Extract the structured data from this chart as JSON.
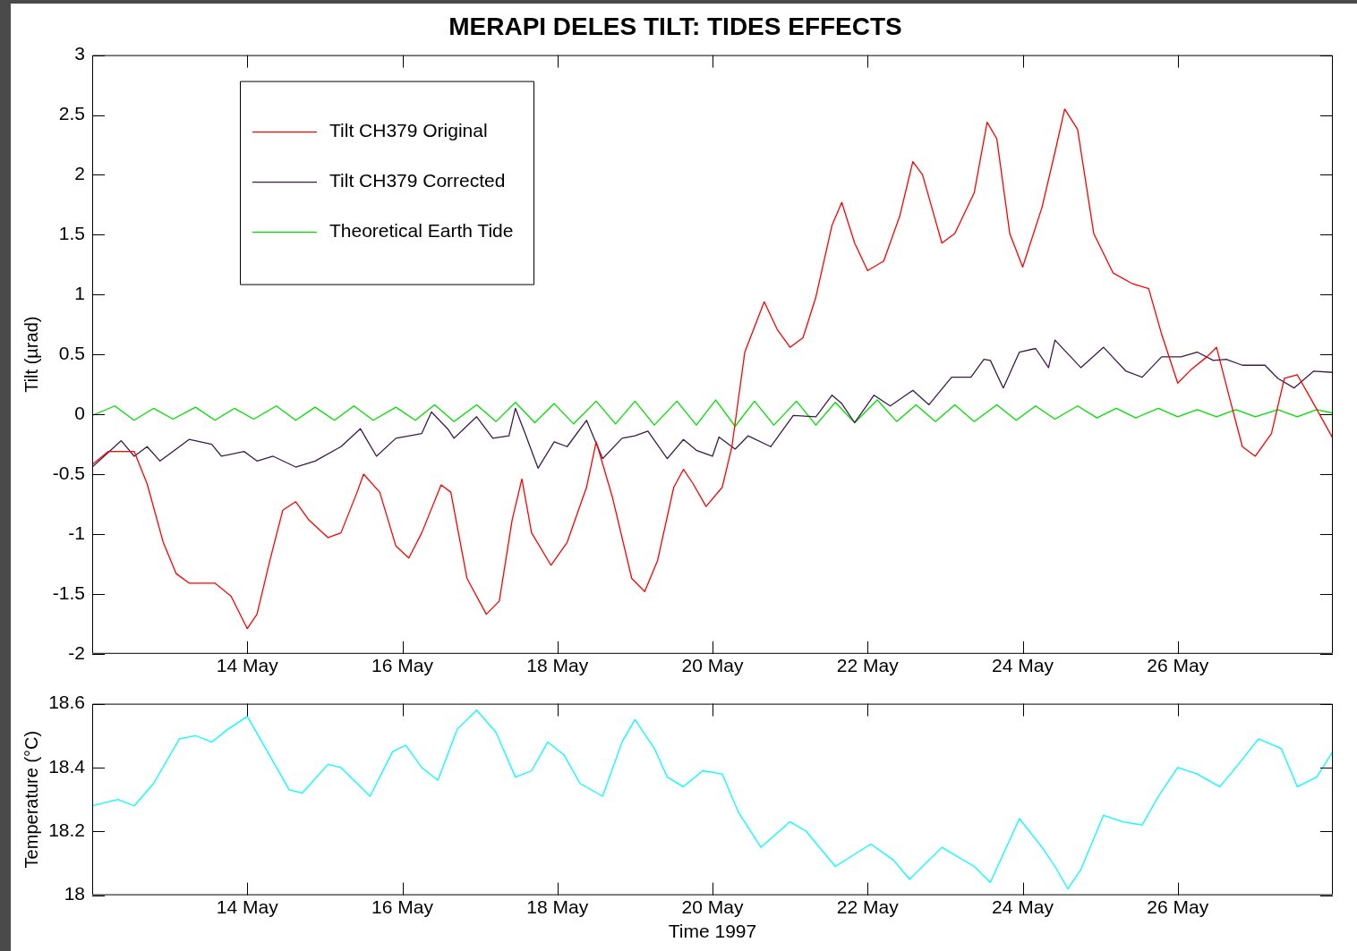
{
  "chart_data": [
    {
      "type": "line",
      "title": "MERAPI DELES TILT: TIDES EFFECTS",
      "ylabel": "Tilt (µrad)",
      "legend": "top left",
      "grid": false,
      "marker": "none",
      "line_style": "solid",
      "xlim": [
        "1997-05-12",
        "1997-05-28"
      ],
      "xticks": [
        {
          "value": "1997-05-14",
          "label": "14 May"
        },
        {
          "value": "1997-05-16",
          "label": "16 May"
        },
        {
          "value": "1997-05-18",
          "label": "18 May"
        },
        {
          "value": "1997-05-20",
          "label": "20 May"
        },
        {
          "value": "1997-05-22",
          "label": "22 May"
        },
        {
          "value": "1997-05-24",
          "label": "24 May"
        },
        {
          "value": "1997-05-26",
          "label": "26 May"
        }
      ],
      "ylim": [
        -2,
        3
      ],
      "yticks": [
        -2,
        -1.5,
        -1,
        -0.5,
        0,
        0.5,
        1,
        1.5,
        2,
        2.5,
        3
      ],
      "series": [
        {
          "name": "Tilt CH379 Original",
          "color": "#ff0000",
          "x": [
            "1997-05-12T00:00",
            "1997-05-12T05:00",
            "1997-05-12T13:00",
            "1997-05-12T17:00",
            "1997-05-12T22:00",
            "1997-05-13T02:00",
            "1997-05-13T06:00",
            "1997-05-13T14:00",
            "1997-05-13T19:00",
            "1997-05-14T00:00",
            "1997-05-14T03:00",
            "1997-05-14T07:00",
            "1997-05-14T11:00",
            "1997-05-14T15:00",
            "1997-05-14T19:00",
            "1997-05-15T01:00",
            "1997-05-15T05:00",
            "1997-05-15T10:00",
            "1997-05-15T12:00",
            "1997-05-15T17:00",
            "1997-05-15T22:00",
            "1997-05-16T02:00",
            "1997-05-16T06:00",
            "1997-05-16T12:00",
            "1997-05-16T15:00",
            "1997-05-16T20:00",
            "1997-05-17T02:00",
            "1997-05-17T06:00",
            "1997-05-17T10:00",
            "1997-05-17T13:00",
            "1997-05-17T16:00",
            "1997-05-17T22:00",
            "1997-05-18T03:00",
            "1997-05-18T09:00",
            "1997-05-18T12:00",
            "1997-05-18T17:00",
            "1997-05-18T23:00",
            "1997-05-19T03:00",
            "1997-05-19T07:00",
            "1997-05-19T12:00",
            "1997-05-19T15:00",
            "1997-05-19T18:00",
            "1997-05-19T22:00",
            "1997-05-20T03:00",
            "1997-05-20T06:00",
            "1997-05-20T10:00",
            "1997-05-20T16:00",
            "1997-05-20T20:00",
            "1997-05-21T00:00",
            "1997-05-21T04:00",
            "1997-05-21T08:00",
            "1997-05-21T13:00",
            "1997-05-21T16:00",
            "1997-05-21T20:00",
            "1997-05-22T00:00",
            "1997-05-22T05:00",
            "1997-05-22T10:00",
            "1997-05-22T14:00",
            "1997-05-22T17:00",
            "1997-05-22T23:00",
            "1997-05-23T03:00",
            "1997-05-23T09:00",
            "1997-05-23T13:00",
            "1997-05-23T16:00",
            "1997-05-23T20:00",
            "1997-05-24T00:00",
            "1997-05-24T06:00",
            "1997-05-24T10:00",
            "1997-05-24T13:00",
            "1997-05-24T17:00",
            "1997-05-24T22:00",
            "1997-05-25T04:00",
            "1997-05-25T10:00",
            "1997-05-25T15:00",
            "1997-05-25T19:00",
            "1997-05-26T00:00",
            "1997-05-26T04:00",
            "1997-05-26T09:00",
            "1997-05-26T12:00",
            "1997-05-26T16:00",
            "1997-05-26T20:00",
            "1997-05-27T00:00",
            "1997-05-27T05:00",
            "1997-05-27T09:00",
            "1997-05-27T13:00",
            "1997-05-27T17:00",
            "1997-05-28T00:00"
          ],
          "values": [
            -0.42,
            -0.31,
            -0.31,
            -0.58,
            -1.07,
            -1.33,
            -1.41,
            -1.41,
            -1.52,
            -1.79,
            -1.67,
            -1.22,
            -0.8,
            -0.73,
            -0.88,
            -1.03,
            -0.99,
            -0.65,
            -0.5,
            -0.65,
            -1.1,
            -1.2,
            -0.99,
            -0.59,
            -0.65,
            -1.37,
            -1.67,
            -1.56,
            -0.88,
            -0.54,
            -0.99,
            -1.26,
            -1.07,
            -0.61,
            -0.23,
            -0.69,
            -1.37,
            -1.48,
            -1.22,
            -0.61,
            -0.46,
            -0.58,
            -0.77,
            -0.61,
            -0.27,
            0.52,
            0.94,
            0.71,
            0.56,
            0.64,
            0.98,
            1.58,
            1.77,
            1.43,
            1.2,
            1.28,
            1.66,
            2.11,
            2.0,
            1.43,
            1.51,
            1.85,
            2.44,
            2.3,
            1.51,
            1.23,
            1.73,
            2.19,
            2.55,
            2.38,
            1.51,
            1.18,
            1.09,
            1.05,
            0.67,
            0.26,
            0.37,
            0.48,
            0.56,
            0.14,
            -0.27,
            -0.35,
            -0.16,
            0.3,
            0.33,
            0.14,
            -0.2
          ]
        },
        {
          "name": "Tilt CH379 Corrected",
          "color": "#3c1a4a",
          "x": [
            "1997-05-12T00:00",
            "1997-05-12T09:00",
            "1997-05-12T13:00",
            "1997-05-12T17:00",
            "1997-05-12T21:00",
            "1997-05-13T06:00",
            "1997-05-13T13:00",
            "1997-05-13T16:00",
            "1997-05-13T23:00",
            "1997-05-14T03:00",
            "1997-05-14T08:00",
            "1997-05-14T15:00",
            "1997-05-14T21:00",
            "1997-05-15T05:00",
            "1997-05-15T11:00",
            "1997-05-15T16:00",
            "1997-05-15T22:00",
            "1997-05-16T06:00",
            "1997-05-16T09:00",
            "1997-05-16T14:00",
            "1997-05-16T16:00",
            "1997-05-16T23:00",
            "1997-05-17T04:00",
            "1997-05-17T09:00",
            "1997-05-17T11:00",
            "1997-05-17T14:00",
            "1997-05-17T18:00",
            "1997-05-17T23:00",
            "1997-05-18T03:00",
            "1997-05-18T09:00",
            "1997-05-18T14:00",
            "1997-05-18T20:00",
            "1997-05-19T00:00",
            "1997-05-19T04:00",
            "1997-05-19T10:00",
            "1997-05-19T15:00",
            "1997-05-19T19:00",
            "1997-05-20T00:00",
            "1997-05-20T02:00",
            "1997-05-20T07:00",
            "1997-05-20T11:00",
            "1997-05-20T18:00",
            "1997-05-21T01:00",
            "1997-05-21T08:00",
            "1997-05-21T13:00",
            "1997-05-21T16:00",
            "1997-05-21T20:00",
            "1997-05-22T02:00",
            "1997-05-22T07:00",
            "1997-05-22T14:00",
            "1997-05-22T19:00",
            "1997-05-23T02:00",
            "1997-05-23T08:00",
            "1997-05-23T12:00",
            "1997-05-23T14:00",
            "1997-05-23T18:00",
            "1997-05-23T23:00",
            "1997-05-24T04:00",
            "1997-05-24T08:00",
            "1997-05-24T10:00",
            "1997-05-24T18:00",
            "1997-05-25T01:00",
            "1997-05-25T08:00",
            "1997-05-25T13:00",
            "1997-05-25T19:00",
            "1997-05-26T01:00",
            "1997-05-26T06:00",
            "1997-05-26T11:00",
            "1997-05-26T15:00",
            "1997-05-26T20:00",
            "1997-05-27T03:00",
            "1997-05-27T07:00",
            "1997-05-27T12:00",
            "1997-05-27T18:00",
            "1997-05-28T00:00"
          ],
          "values": [
            -0.44,
            -0.22,
            -0.35,
            -0.27,
            -0.39,
            -0.21,
            -0.25,
            -0.35,
            -0.31,
            -0.39,
            -0.35,
            -0.44,
            -0.39,
            -0.27,
            -0.12,
            -0.35,
            -0.2,
            -0.16,
            0.02,
            -0.12,
            -0.2,
            -0.02,
            -0.2,
            -0.18,
            0.05,
            -0.16,
            -0.45,
            -0.23,
            -0.27,
            -0.05,
            -0.37,
            -0.2,
            -0.18,
            -0.14,
            -0.37,
            -0.21,
            -0.3,
            -0.35,
            -0.19,
            -0.29,
            -0.18,
            -0.27,
            -0.01,
            -0.02,
            0.16,
            0.09,
            -0.07,
            0.16,
            0.07,
            0.2,
            0.08,
            0.31,
            0.31,
            0.46,
            0.45,
            0.22,
            0.52,
            0.55,
            0.39,
            0.62,
            0.39,
            0.56,
            0.36,
            0.31,
            0.48,
            0.48,
            0.52,
            0.45,
            0.46,
            0.41,
            0.41,
            0.3,
            0.22,
            0.36,
            0.35
          ]
        },
        {
          "name": "Theoretical Earth Tide",
          "color": "#00e000",
          "x": [
            "1997-05-12T00:00",
            "1997-05-12T07:00",
            "1997-05-12T13:00",
            "1997-05-12T19:00",
            "1997-05-13T01:00",
            "1997-05-13T08:00",
            "1997-05-13T14:00",
            "1997-05-13T20:00",
            "1997-05-14T02:00",
            "1997-05-14T09:00",
            "1997-05-14T15:00",
            "1997-05-14T21:00",
            "1997-05-15T03:00",
            "1997-05-15T09:00",
            "1997-05-15T15:00",
            "1997-05-15T22:00",
            "1997-05-16T04:00",
            "1997-05-16T10:00",
            "1997-05-16T16:00",
            "1997-05-16T23:00",
            "1997-05-17T05:00",
            "1997-05-17T11:00",
            "1997-05-17T17:00",
            "1997-05-17T23:00",
            "1997-05-18T05:00",
            "1997-05-18T12:00",
            "1997-05-18T18:00",
            "1997-05-19T00:00",
            "1997-05-19T06:00",
            "1997-05-19T13:00",
            "1997-05-19T19:00",
            "1997-05-20T01:00",
            "1997-05-20T07:00",
            "1997-05-20T13:00",
            "1997-05-20T19:00",
            "1997-05-21T02:00",
            "1997-05-21T08:00",
            "1997-05-21T14:00",
            "1997-05-21T20:00",
            "1997-05-22T03:00",
            "1997-05-22T09:00",
            "1997-05-22T15:00",
            "1997-05-22T21:00",
            "1997-05-23T03:00",
            "1997-05-23T09:00",
            "1997-05-23T16:00",
            "1997-05-23T22:00",
            "1997-05-24T04:00",
            "1997-05-24T10:00",
            "1997-05-24T17:00",
            "1997-05-24T23:00",
            "1997-05-25T05:00",
            "1997-05-25T11:00",
            "1997-05-25T18:00",
            "1997-05-26T00:00",
            "1997-05-26T06:00",
            "1997-05-26T12:00",
            "1997-05-26T18:00",
            "1997-05-27T00:00",
            "1997-05-27T07:00",
            "1997-05-27T13:00",
            "1997-05-27T19:00",
            "1997-05-28T00:00"
          ],
          "values": [
            -0.01,
            0.07,
            -0.05,
            0.05,
            -0.04,
            0.06,
            -0.05,
            0.05,
            -0.04,
            0.07,
            -0.05,
            0.06,
            -0.05,
            0.07,
            -0.05,
            0.06,
            -0.05,
            0.08,
            -0.06,
            0.08,
            -0.06,
            0.1,
            -0.07,
            0.09,
            -0.08,
            0.11,
            -0.08,
            0.11,
            -0.09,
            0.11,
            -0.09,
            0.12,
            -0.1,
            0.11,
            -0.09,
            0.11,
            -0.09,
            0.1,
            -0.07,
            0.12,
            -0.06,
            0.08,
            -0.06,
            0.08,
            -0.06,
            0.08,
            -0.05,
            0.07,
            -0.04,
            0.07,
            -0.03,
            0.05,
            -0.03,
            0.05,
            -0.02,
            0.04,
            -0.02,
            0.04,
            -0.02,
            0.04,
            -0.02,
            0.04,
            0.01
          ]
        }
      ]
    },
    {
      "type": "line",
      "xlabel": "Time 1997",
      "ylabel": "Temperature (°C)",
      "grid": false,
      "marker": "none",
      "line_style": "solid",
      "xlim": [
        "1997-05-12",
        "1997-05-28"
      ],
      "xticks": [
        {
          "value": "1997-05-14",
          "label": "14 May"
        },
        {
          "value": "1997-05-16",
          "label": "16 May"
        },
        {
          "value": "1997-05-18",
          "label": "18 May"
        },
        {
          "value": "1997-05-20",
          "label": "20 May"
        },
        {
          "value": "1997-05-22",
          "label": "22 May"
        },
        {
          "value": "1997-05-24",
          "label": "24 May"
        },
        {
          "value": "1997-05-26",
          "label": "26 May"
        }
      ],
      "ylim": [
        18,
        18.6
      ],
      "yticks": [
        18,
        18.2,
        18.4,
        18.6
      ],
      "series": [
        {
          "color": "#00ffff",
          "x": [
            "1997-05-12T00:00",
            "1997-05-12T08:00",
            "1997-05-12T13:00",
            "1997-05-12T19:00",
            "1997-05-13T03:00",
            "1997-05-13T08:00",
            "1997-05-13T13:00",
            "1997-05-13T18:00",
            "1997-05-14T00:00",
            "1997-05-14T04:00",
            "1997-05-14T13:00",
            "1997-05-14T17:00",
            "1997-05-15T01:00",
            "1997-05-15T05:00",
            "1997-05-15T10:00",
            "1997-05-15T14:00",
            "1997-05-15T21:00",
            "1997-05-16T01:00",
            "1997-05-16T06:00",
            "1997-05-16T11:00",
            "1997-05-16T17:00",
            "1997-05-16T23:00",
            "1997-05-17T05:00",
            "1997-05-17T11:00",
            "1997-05-17T16:00",
            "1997-05-17T21:00",
            "1997-05-18T02:00",
            "1997-05-18T07:00",
            "1997-05-18T14:00",
            "1997-05-18T20:00",
            "1997-05-19T00:00",
            "1997-05-19T06:00",
            "1997-05-19T10:00",
            "1997-05-19T15:00",
            "1997-05-19T21:00",
            "1997-05-20T03:00",
            "1997-05-20T08:00",
            "1997-05-20T15:00",
            "1997-05-21T00:00",
            "1997-05-21T05:00",
            "1997-05-21T14:00",
            "1997-05-22T01:00",
            "1997-05-22T08:00",
            "1997-05-22T13:00",
            "1997-05-22T23:00",
            "1997-05-23T09:00",
            "1997-05-23T14:00",
            "1997-05-23T23:00",
            "1997-05-24T06:00",
            "1997-05-24T10:00",
            "1997-05-24T14:00",
            "1997-05-24T18:00",
            "1997-05-25T01:00",
            "1997-05-25T07:00",
            "1997-05-25T13:00",
            "1997-05-25T18:00",
            "1997-05-26T00:00",
            "1997-05-26T06:00",
            "1997-05-26T13:00",
            "1997-05-26T18:00",
            "1997-05-27T01:00",
            "1997-05-27T08:00",
            "1997-05-27T13:00",
            "1997-05-27T19:00",
            "1997-05-28T00:00"
          ],
          "values": [
            18.28,
            18.3,
            18.28,
            18.35,
            18.49,
            18.5,
            18.48,
            18.52,
            18.56,
            18.49,
            18.33,
            18.32,
            18.41,
            18.4,
            18.35,
            18.31,
            18.45,
            18.47,
            18.4,
            18.36,
            18.52,
            18.58,
            18.51,
            18.37,
            18.39,
            18.48,
            18.44,
            18.35,
            18.31,
            18.48,
            18.55,
            18.46,
            18.37,
            18.34,
            18.39,
            18.38,
            18.26,
            18.15,
            18.23,
            18.2,
            18.09,
            18.16,
            18.11,
            18.05,
            18.15,
            18.09,
            18.04,
            18.24,
            18.15,
            18.09,
            18.02,
            18.08,
            18.25,
            18.23,
            18.22,
            18.31,
            18.4,
            18.38,
            18.34,
            18.4,
            18.49,
            18.46,
            18.34,
            18.37,
            18.45
          ]
        }
      ]
    }
  ]
}
